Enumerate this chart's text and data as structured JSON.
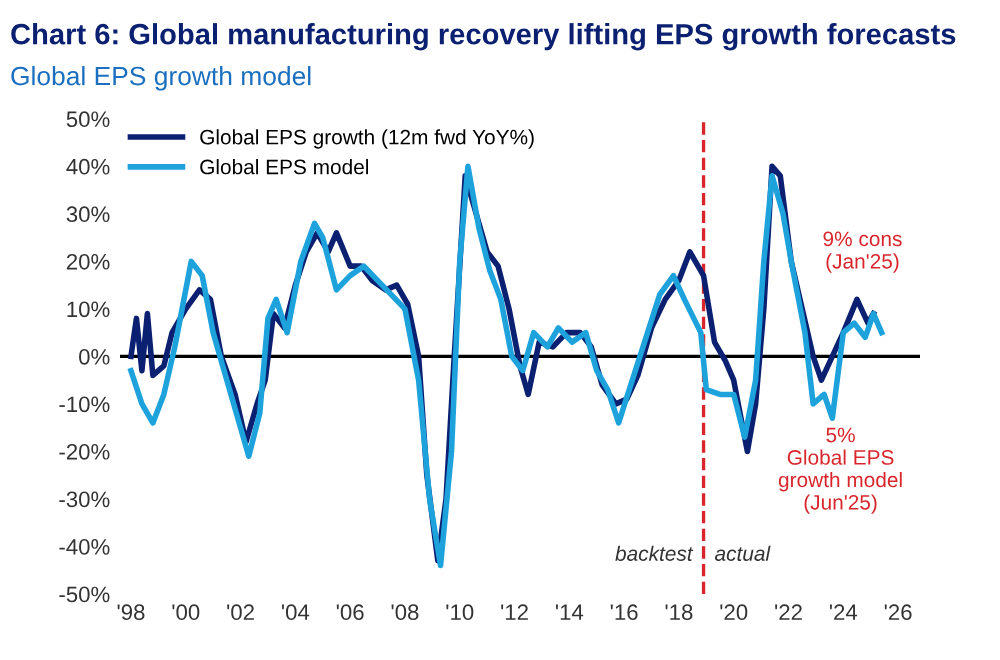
{
  "chart_data": {
    "type": "line",
    "title": "Chart 6: Global manufacturing recovery lifting EPS growth forecasts",
    "subtitle": "Global EPS growth model",
    "series": [
      {
        "name": "Global EPS growth (12m fwd YoY%)",
        "color": "#0b2070",
        "x": [
          1998.0,
          1998.2,
          1998.4,
          1998.6,
          1998.8,
          1999.2,
          1999.5,
          2000.0,
          2000.5,
          2000.9,
          2001.3,
          2001.8,
          2002.2,
          2002.6,
          2002.9,
          2003.2,
          2003.6,
          2004.0,
          2004.4,
          2004.8,
          2005.2,
          2005.5,
          2006.0,
          2006.4,
          2006.8,
          2007.3,
          2007.7,
          2008.1,
          2008.5,
          2008.8,
          2009.2,
          2009.5,
          2009.8,
          2010.2,
          2010.6,
          2011.0,
          2011.4,
          2011.8,
          2012.2,
          2012.5,
          2012.9,
          2013.4,
          2013.9,
          2014.4,
          2014.8,
          2015.2,
          2015.7,
          2016.1,
          2016.5,
          2017.0,
          2017.5,
          2018.0,
          2018.4,
          2018.9,
          2019.3,
          2019.7,
          2020.0,
          2020.5,
          2020.8,
          2021.1,
          2021.4,
          2021.7,
          2022.1,
          2022.5,
          2022.9,
          2023.2,
          2023.6,
          2024.0,
          2024.5,
          2024.9,
          2025.1
        ],
        "values": [
          0,
          8,
          -3,
          9,
          -4,
          -2,
          5,
          10,
          14,
          12,
          0,
          -8,
          -18,
          -10,
          -5,
          9,
          6,
          15,
          22,
          26,
          22,
          26,
          19,
          19,
          16,
          14,
          15,
          11,
          0,
          -25,
          -43,
          -30,
          0,
          38,
          30,
          22,
          19,
          10,
          -2,
          -8,
          3,
          2,
          5,
          5,
          2,
          -6,
          -10,
          -9,
          -4,
          6,
          12,
          16,
          22,
          17,
          3,
          -1,
          -5,
          -20,
          -10,
          10,
          40,
          38,
          20,
          10,
          0,
          -5,
          0,
          5,
          12,
          7,
          9
        ]
      },
      {
        "name": "Global EPS model",
        "color": "#1ea2dc",
        "x": [
          1998.0,
          1998.4,
          1998.8,
          1999.2,
          1999.6,
          2000.2,
          2000.6,
          2001.0,
          2001.5,
          2002.0,
          2002.3,
          2002.7,
          2003.0,
          2003.3,
          2003.7,
          2004.2,
          2004.7,
          2005.0,
          2005.5,
          2006.0,
          2006.5,
          2007.0,
          2007.5,
          2008.0,
          2008.5,
          2008.9,
          2009.3,
          2009.7,
          2010.0,
          2010.3,
          2010.7,
          2011.1,
          2011.5,
          2011.9,
          2012.3,
          2012.7,
          2013.2,
          2013.6,
          2014.1,
          2014.6,
          2015.0,
          2015.4,
          2015.8,
          2016.3,
          2016.8,
          2017.3,
          2017.8,
          2018.2,
          2018.8,
          2019.0,
          2019.5,
          2020.0,
          2020.4,
          2020.8,
          2021.1,
          2021.4,
          2021.8,
          2022.1,
          2022.6,
          2022.9,
          2023.3,
          2023.6,
          2024.0,
          2024.4,
          2024.8,
          2025.1,
          2025.4
        ],
        "values": [
          -3,
          -10,
          -14,
          -8,
          2,
          20,
          17,
          5,
          -5,
          -15,
          -21,
          -12,
          8,
          12,
          5,
          20,
          28,
          25,
          14,
          17,
          19,
          16,
          13,
          10,
          -5,
          -30,
          -44,
          -20,
          20,
          40,
          27,
          18,
          12,
          0,
          -3,
          5,
          2,
          6,
          3,
          5,
          -3,
          -7,
          -14,
          -5,
          4,
          13,
          17,
          12,
          5,
          -7,
          -8,
          -8,
          -17,
          -5,
          20,
          38,
          30,
          20,
          5,
          -10,
          -8,
          -13,
          5,
          7,
          4,
          9,
          5
        ]
      }
    ],
    "xlim": [
      1997.6,
      2026.8
    ],
    "xticks": [
      {
        "value": 1998,
        "label": "'98"
      },
      {
        "value": 2000,
        "label": "'00"
      },
      {
        "value": 2002,
        "label": "'02"
      },
      {
        "value": 2004,
        "label": "'04"
      },
      {
        "value": 2006,
        "label": "'06"
      },
      {
        "value": 2008,
        "label": "'08"
      },
      {
        "value": 2010,
        "label": "'10"
      },
      {
        "value": 2012,
        "label": "'12"
      },
      {
        "value": 2014,
        "label": "'14"
      },
      {
        "value": 2016,
        "label": "'16"
      },
      {
        "value": 2018,
        "label": "'18"
      },
      {
        "value": 2020,
        "label": "'20"
      },
      {
        "value": 2022,
        "label": "'22"
      },
      {
        "value": 2024,
        "label": "'24"
      },
      {
        "value": 2026,
        "label": "'26"
      }
    ],
    "ylim": [
      -50,
      50
    ],
    "yticks": [
      {
        "value": -50,
        "label": "-50%"
      },
      {
        "value": -40,
        "label": "-40%"
      },
      {
        "value": -30,
        "label": "-30%"
      },
      {
        "value": -20,
        "label": "-20%"
      },
      {
        "value": -10,
        "label": "-10%"
      },
      {
        "value": 0,
        "label": "0%"
      },
      {
        "value": 10,
        "label": "10%"
      },
      {
        "value": 20,
        "label": "20%"
      },
      {
        "value": 30,
        "label": "30%"
      },
      {
        "value": 40,
        "label": "40%"
      },
      {
        "value": 50,
        "label": "50%"
      }
    ],
    "ref_lines": [
      {
        "axis": "y",
        "value": 0,
        "color": "#000000",
        "line_style": "solid"
      },
      {
        "axis": "x",
        "value": 2018.9,
        "color": "#d9262c",
        "line_style": "dashed"
      }
    ],
    "annotations": [
      "9% cons\n(Jan'25)",
      "5%\nGlobal EPS\ngrowth model\n(Jun'25)",
      "backtest",
      "actual"
    ],
    "legend": "top left",
    "grid": false,
    "marker": "none",
    "line_style": "solid"
  }
}
